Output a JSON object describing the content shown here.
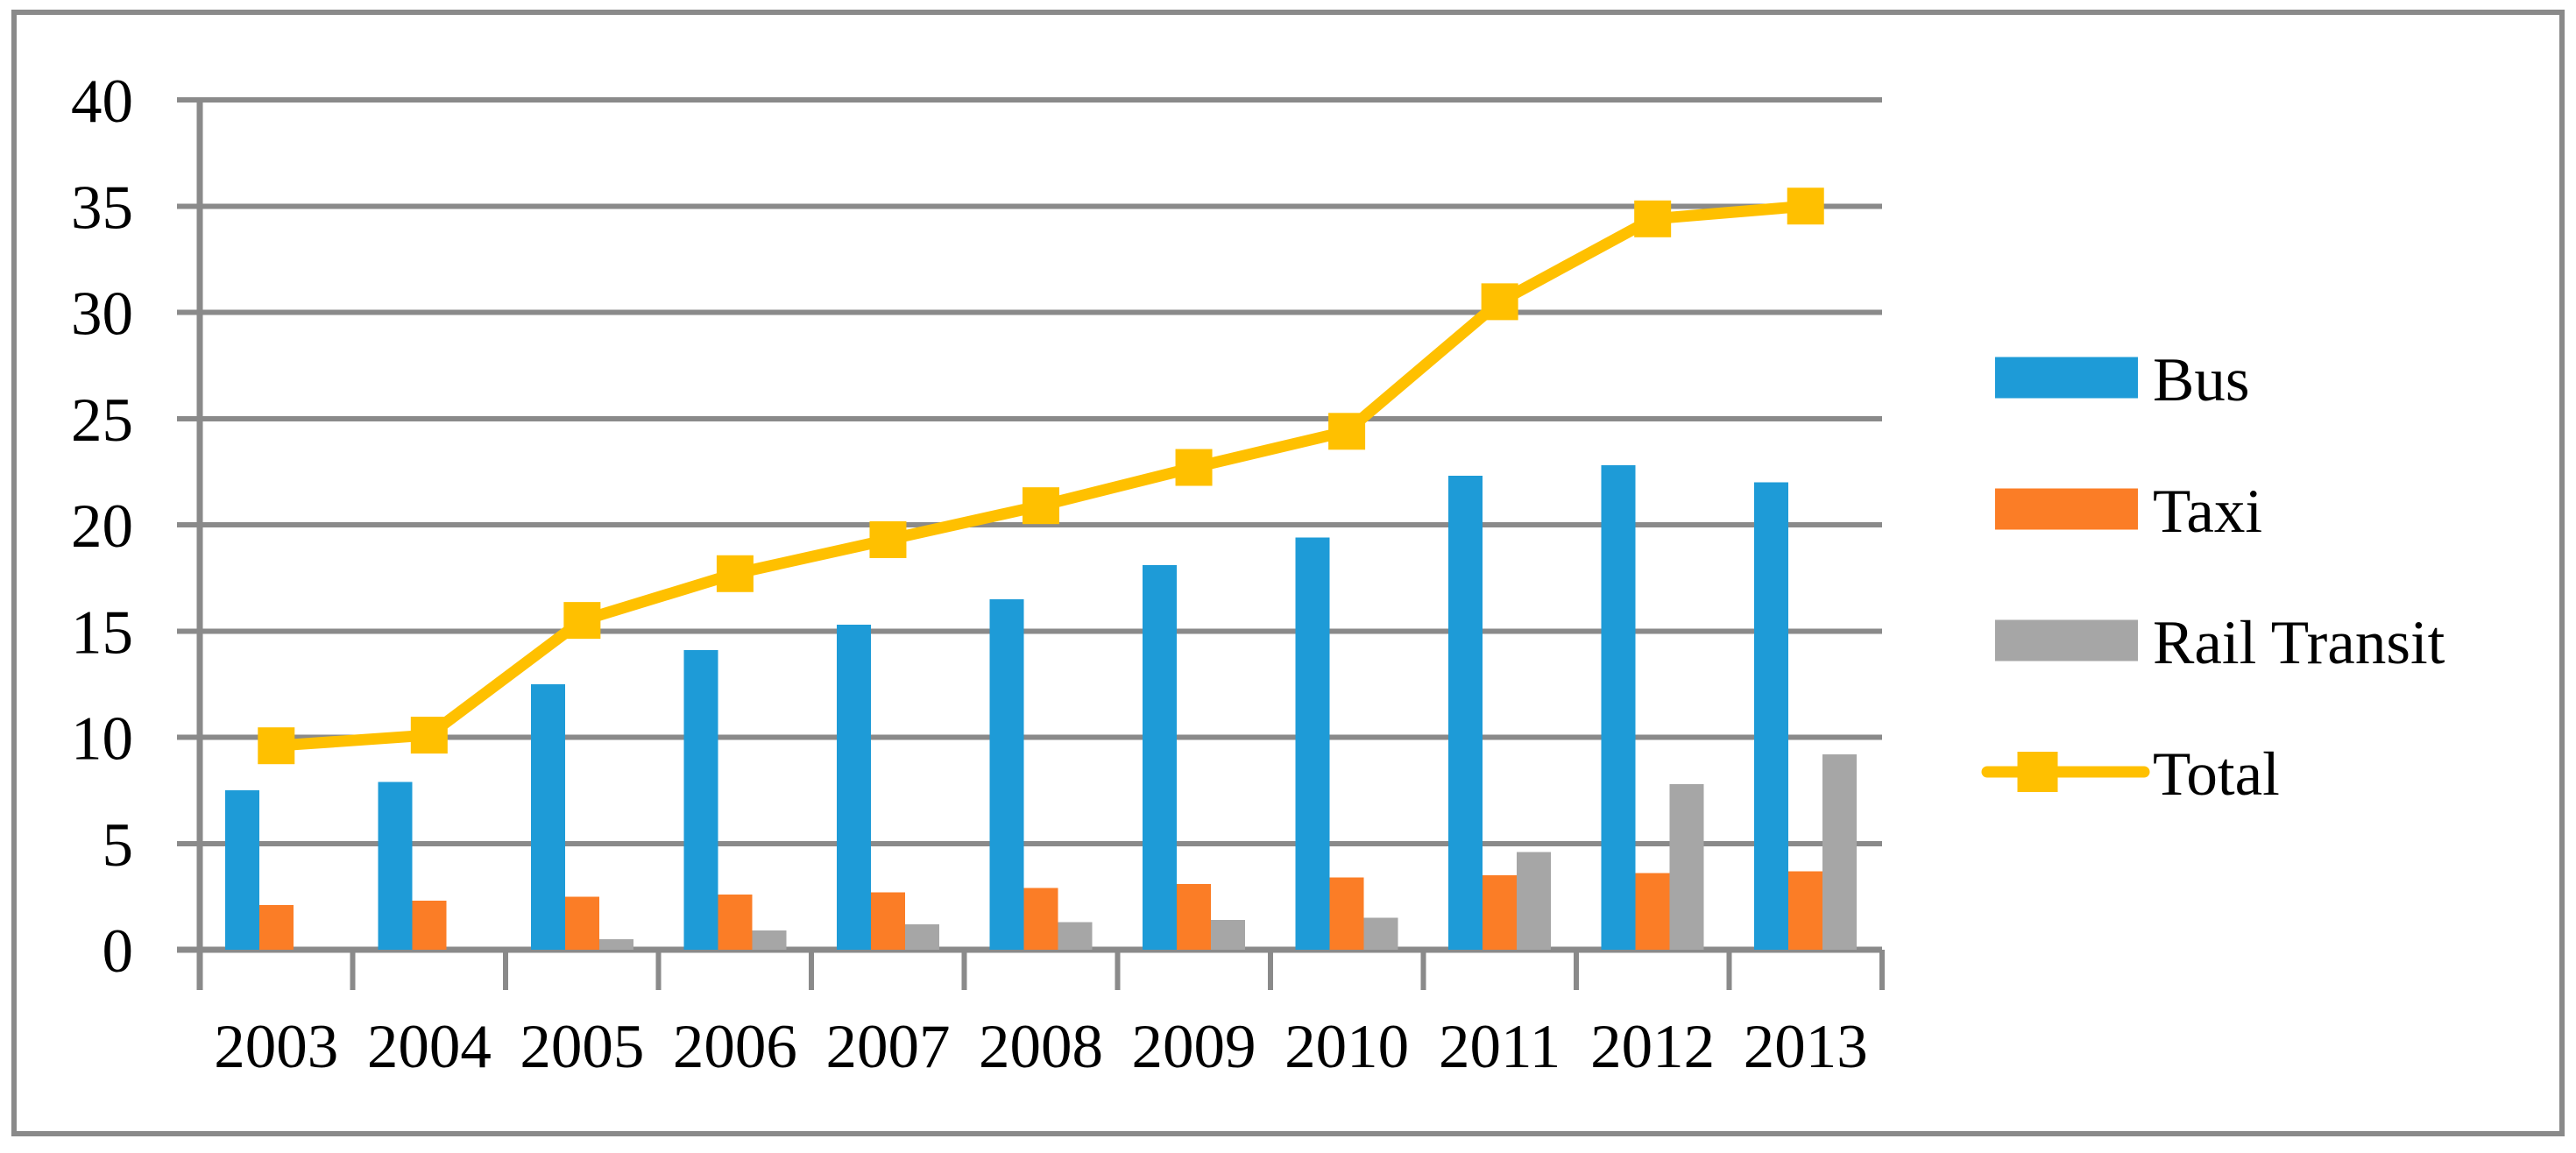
{
  "chart_data": {
    "type": "bar",
    "subtype": "clustered-bar-with-line-overlay",
    "categories": [
      "2003",
      "2004",
      "2005",
      "2006",
      "2007",
      "2008",
      "2009",
      "2010",
      "2011",
      "2012",
      "2013"
    ],
    "series": [
      {
        "name": "Bus",
        "type": "bar",
        "color": "#1E9BD7",
        "values": [
          7.5,
          7.9,
          12.5,
          14.1,
          15.3,
          16.5,
          18.1,
          19.4,
          22.3,
          22.8,
          22.0
        ]
      },
      {
        "name": "Taxi",
        "type": "bar",
        "color": "#FB7D26",
        "values": [
          2.1,
          2.3,
          2.5,
          2.6,
          2.7,
          2.9,
          3.1,
          3.4,
          3.5,
          3.6,
          3.7
        ]
      },
      {
        "name": "Rail Transit",
        "type": "bar",
        "color": "#A6A6A6",
        "values": [
          0,
          0,
          0.5,
          0.9,
          1.2,
          1.3,
          1.4,
          1.5,
          4.6,
          7.8,
          9.2
        ]
      },
      {
        "name": "Total",
        "type": "line",
        "color": "#FFC000",
        "marker": "square",
        "values": [
          9.6,
          10.1,
          15.5,
          17.7,
          19.3,
          20.9,
          22.7,
          24.4,
          30.5,
          34.4,
          35.0
        ]
      }
    ],
    "title": "",
    "xlabel": "",
    "ylabel": "",
    "ylim": [
      0,
      40
    ],
    "ytick_step": 5,
    "yticks": [
      "0",
      "5",
      "10",
      "15",
      "20",
      "25",
      "30",
      "35",
      "40"
    ],
    "grid": true,
    "gridline_color": "#8A8A8A",
    "text_color": "#000000",
    "frame_color": "#8A8A8A",
    "background_color": "#FFFFFF",
    "legend_position": "right",
    "legend_items": [
      "Bus",
      "Taxi",
      "Rail Transit",
      "Total"
    ]
  }
}
